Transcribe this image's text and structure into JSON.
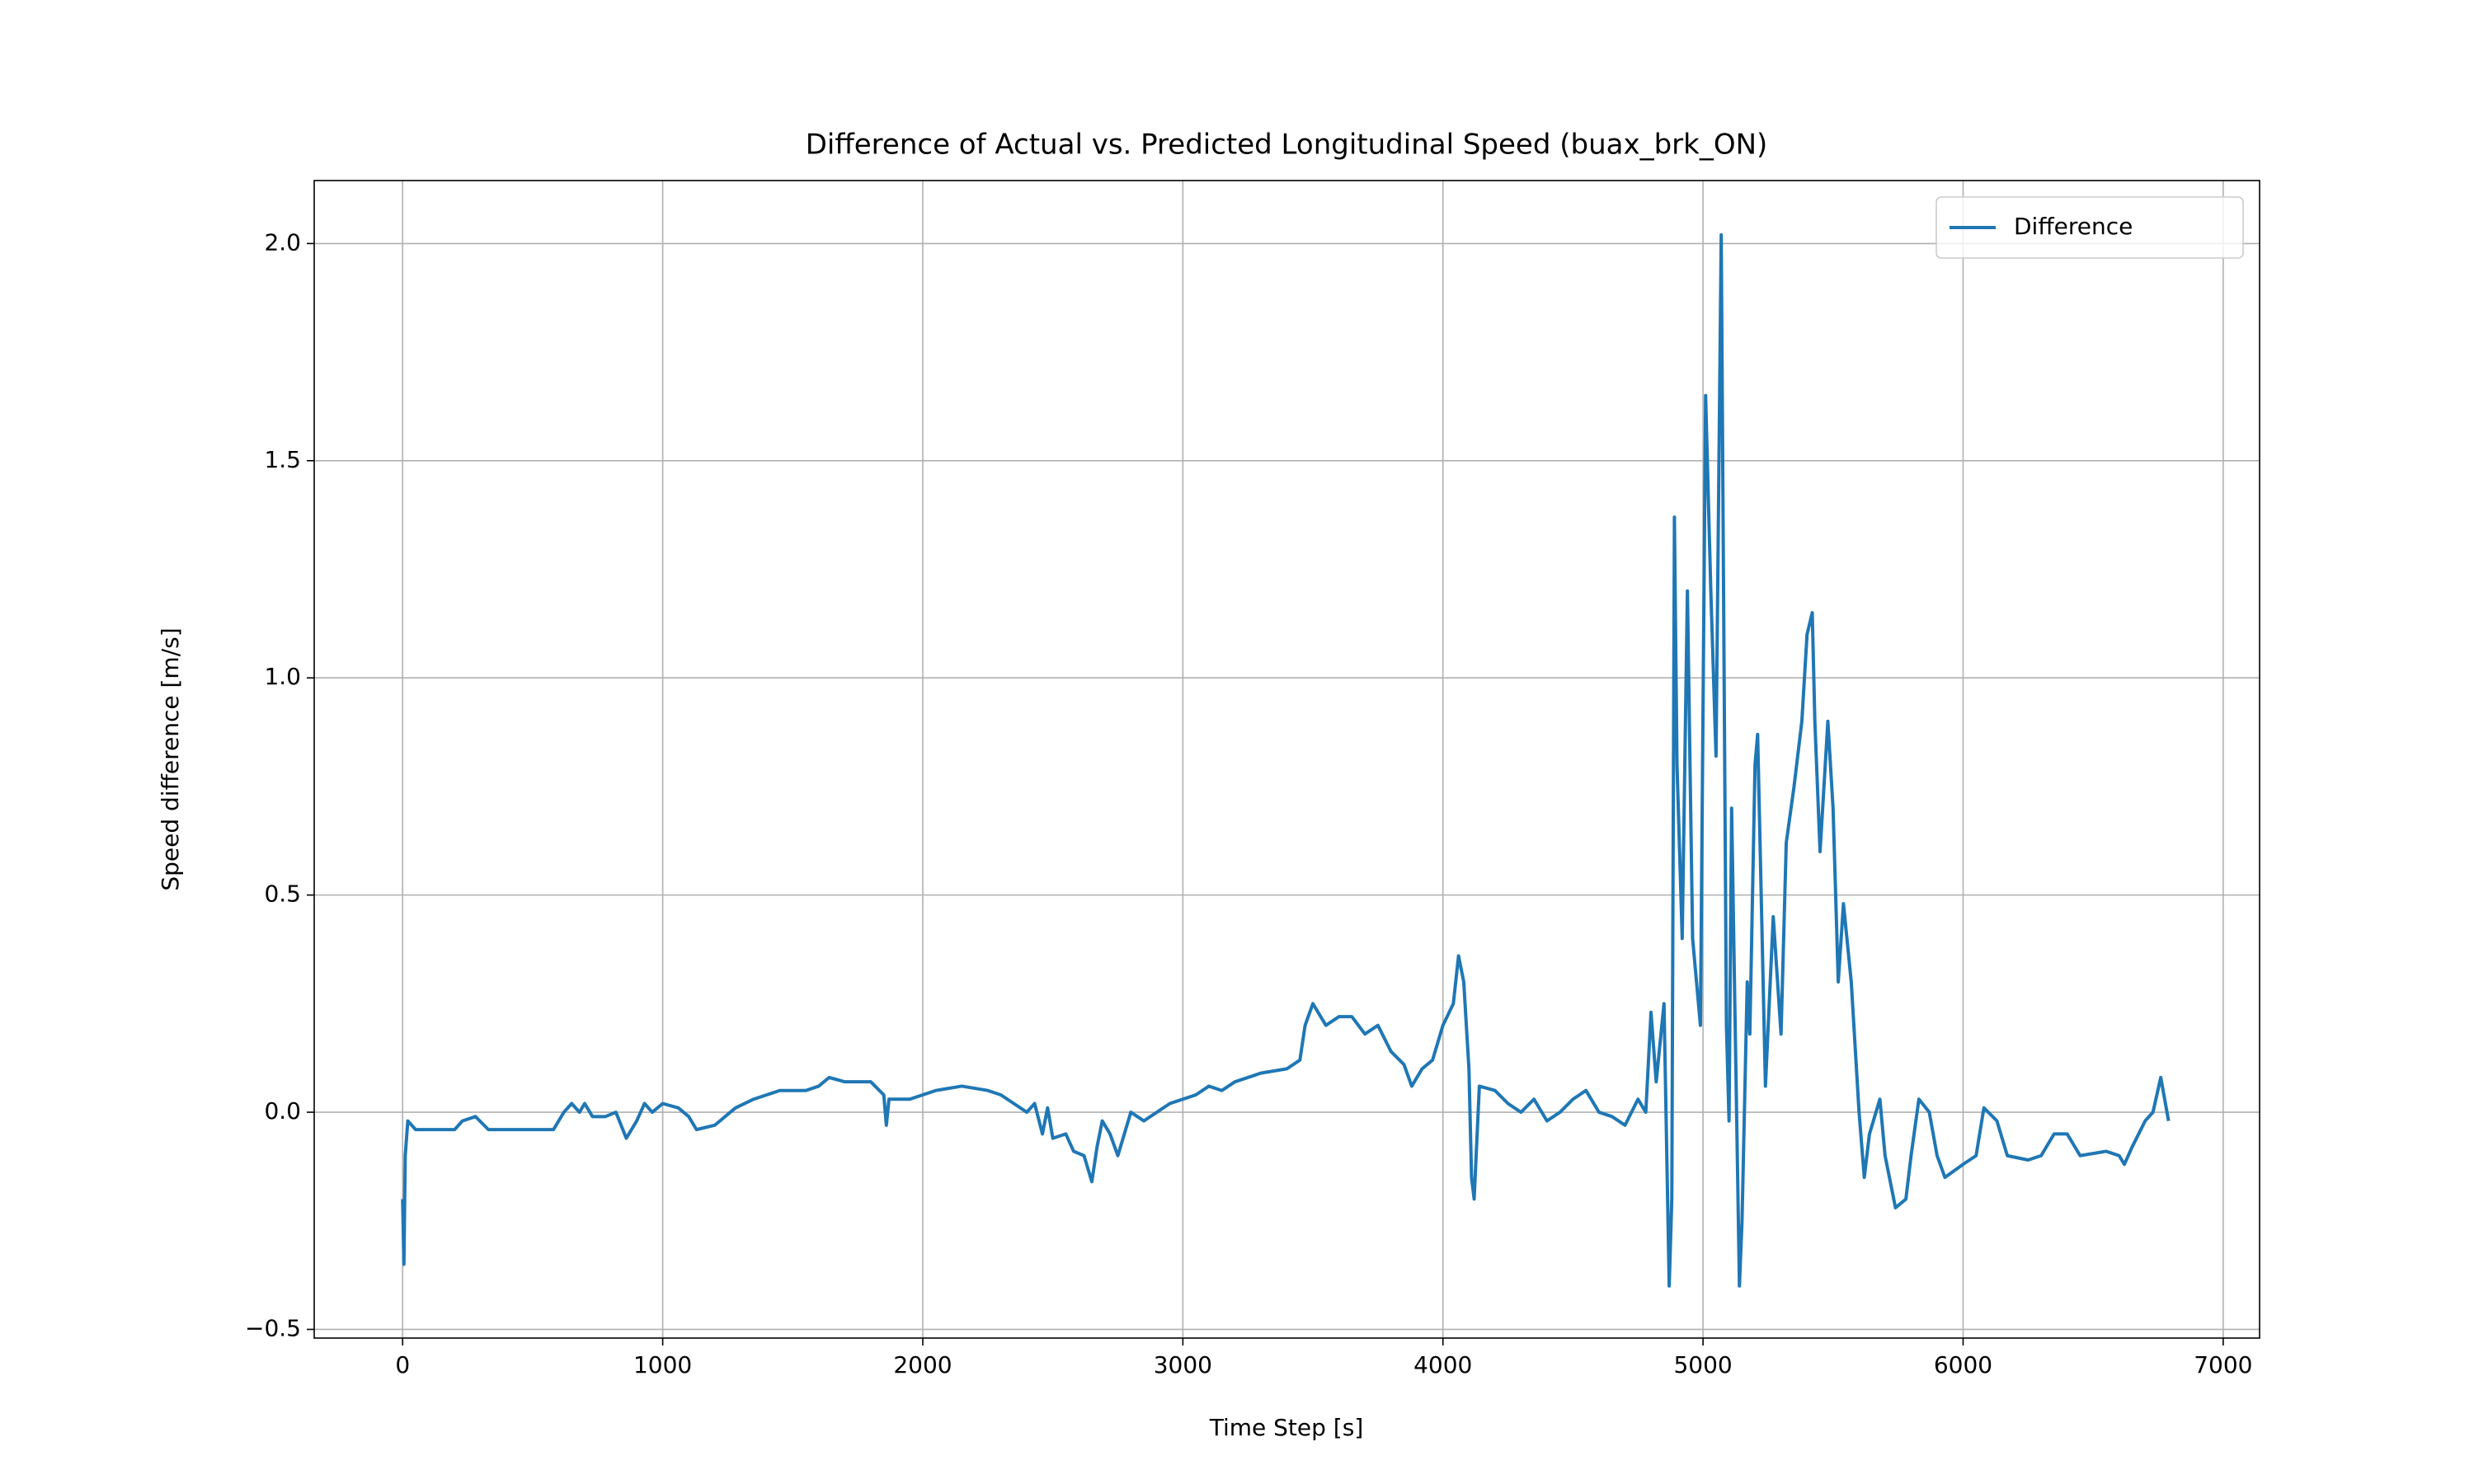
{
  "chart_data": {
    "type": "line",
    "title": "Difference of Actual vs. Predicted Longitudinal Speed (buax_brk_ON)",
    "xlabel": "Time Step [s]",
    "ylabel": "Speed difference [m/s]",
    "xlim": [
      -340,
      7140
    ],
    "ylim": [
      -0.52,
      2.145
    ],
    "xticks": [
      0,
      1000,
      2000,
      3000,
      4000,
      5000,
      6000,
      7000
    ],
    "yticks": [
      {
        "value": -0.5,
        "label": "−0.5"
      },
      {
        "value": 0,
        "label": "0.0"
      },
      {
        "value": 0.5,
        "label": "0.5"
      },
      {
        "value": 1,
        "label": "1.0"
      },
      {
        "value": 1.5,
        "label": "1.5"
      },
      {
        "value": 2,
        "label": "2.0"
      }
    ],
    "grid": true,
    "legend": "upper right",
    "x": [
      0,
      5,
      10,
      20,
      50,
      100,
      200,
      230,
      280,
      330,
      400,
      500,
      580,
      620,
      650,
      680,
      700,
      730,
      780,
      820,
      860,
      900,
      930,
      960,
      1000,
      1060,
      1100,
      1130,
      1200,
      1280,
      1350,
      1450,
      1550,
      1600,
      1640,
      1700,
      1800,
      1850,
      1860,
      1870,
      1950,
      2050,
      2150,
      2250,
      2300,
      2350,
      2400,
      2430,
      2460,
      2480,
      2500,
      2550,
      2580,
      2620,
      2650,
      2670,
      2690,
      2720,
      2750,
      2780,
      2800,
      2850,
      2900,
      2950,
      3000,
      3050,
      3100,
      3150,
      3200,
      3300,
      3400,
      3450,
      3470,
      3500,
      3550,
      3600,
      3650,
      3700,
      3750,
      3800,
      3850,
      3880,
      3920,
      3960,
      4000,
      4040,
      4060,
      4080,
      4100,
      4110,
      4120,
      4140,
      4200,
      4250,
      4300,
      4350,
      4400,
      4450,
      4500,
      4550,
      4600,
      4650,
      4700,
      4750,
      4780,
      4800,
      4820,
      4850,
      4870,
      4880,
      4890,
      4900,
      4920,
      4940,
      4960,
      4990,
      5010,
      5030,
      5050,
      5070,
      5090,
      5100,
      5110,
      5140,
      5150,
      5170,
      5180,
      5200,
      5210,
      5240,
      5270,
      5300,
      5320,
      5350,
      5380,
      5400,
      5420,
      5430,
      5450,
      5480,
      5500,
      5520,
      5540,
      5570,
      5600,
      5620,
      5640,
      5680,
      5700,
      5740,
      5780,
      5800,
      5830,
      5870,
      5900,
      5930,
      6000,
      6050,
      6080,
      6130,
      6170,
      6250,
      6300,
      6350,
      6400,
      6450,
      6550,
      6600,
      6620,
      6650,
      6700,
      6730,
      6760,
      6790
    ],
    "series": [
      {
        "name": "Difference",
        "color": "#1f77b4",
        "values": [
          -0.2,
          -0.35,
          -0.1,
          -0.02,
          -0.04,
          -0.04,
          -0.04,
          -0.02,
          -0.01,
          -0.04,
          -0.04,
          -0.04,
          -0.04,
          0.0,
          0.02,
          0.0,
          0.02,
          -0.01,
          -0.01,
          0.0,
          -0.06,
          -0.02,
          0.02,
          0.0,
          0.02,
          0.01,
          -0.01,
          -0.04,
          -0.03,
          0.01,
          0.03,
          0.05,
          0.05,
          0.06,
          0.08,
          0.07,
          0.07,
          0.04,
          -0.03,
          0.03,
          0.03,
          0.05,
          0.06,
          0.05,
          0.04,
          0.02,
          0.0,
          0.02,
          -0.05,
          0.01,
          -0.06,
          -0.05,
          -0.09,
          -0.1,
          -0.16,
          -0.08,
          -0.02,
          -0.05,
          -0.1,
          -0.04,
          0.0,
          -0.02,
          0.0,
          0.02,
          0.03,
          0.04,
          0.06,
          0.05,
          0.07,
          0.09,
          0.1,
          0.12,
          0.2,
          0.25,
          0.2,
          0.22,
          0.22,
          0.18,
          0.2,
          0.14,
          0.11,
          0.06,
          0.1,
          0.12,
          0.2,
          0.25,
          0.36,
          0.3,
          0.1,
          -0.15,
          -0.2,
          0.06,
          0.05,
          0.02,
          0.0,
          0.03,
          -0.02,
          0.0,
          0.03,
          0.05,
          0.0,
          -0.01,
          -0.03,
          0.03,
          0.0,
          0.23,
          0.07,
          0.25,
          -0.4,
          -0.2,
          1.37,
          0.8,
          0.4,
          1.2,
          0.4,
          0.2,
          1.65,
          1.2,
          0.82,
          2.02,
          0.2,
          -0.02,
          0.7,
          -0.4,
          -0.25,
          0.3,
          0.18,
          0.8,
          0.87,
          0.06,
          0.45,
          0.18,
          0.62,
          0.75,
          0.9,
          1.1,
          1.15,
          0.9,
          0.6,
          0.9,
          0.7,
          0.3,
          0.48,
          0.3,
          0.0,
          -0.15,
          -0.05,
          0.03,
          -0.1,
          -0.22,
          -0.2,
          -0.1,
          0.03,
          0.0,
          -0.1,
          -0.15,
          -0.12,
          -0.1,
          0.01,
          -0.02,
          -0.1,
          -0.11,
          -0.1,
          -0.05,
          -0.05,
          -0.1,
          -0.09,
          -0.1,
          -0.12,
          -0.08,
          -0.02,
          0.0,
          0.08,
          -0.02
        ]
      }
    ]
  }
}
